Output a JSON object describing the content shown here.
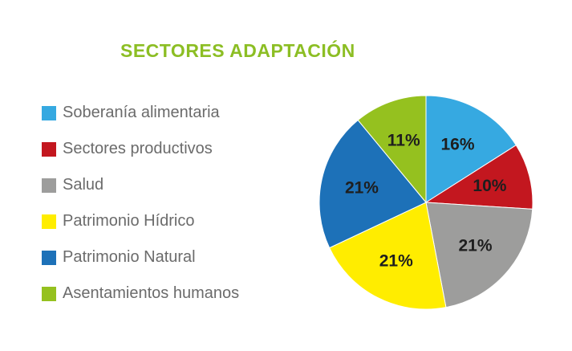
{
  "title": "SECTORES ADAPTACIÓN",
  "chart_data": {
    "type": "pie",
    "title": "SECTORES ADAPTACIÓN",
    "legend_position": "left",
    "slices": [
      {
        "name": "Soberanía alimentaria",
        "value": 16,
        "label": "16%",
        "color": "#36a9e1"
      },
      {
        "name": "Sectores productivos",
        "value": 10,
        "label": "10%",
        "color": "#c3171f"
      },
      {
        "name": "Salud",
        "value": 21,
        "label": "21%",
        "color": "#9d9d9c"
      },
      {
        "name": "Patrimonio Hídrico",
        "value": 21,
        "label": "21%",
        "color": "#ffed00"
      },
      {
        "name": "Patrimonio Natural",
        "value": 21,
        "label": "21%",
        "color": "#1d71b8"
      },
      {
        "name": "Asentamientos humanos",
        "value": 11,
        "label": "11%",
        "color": "#95c11f"
      }
    ]
  }
}
